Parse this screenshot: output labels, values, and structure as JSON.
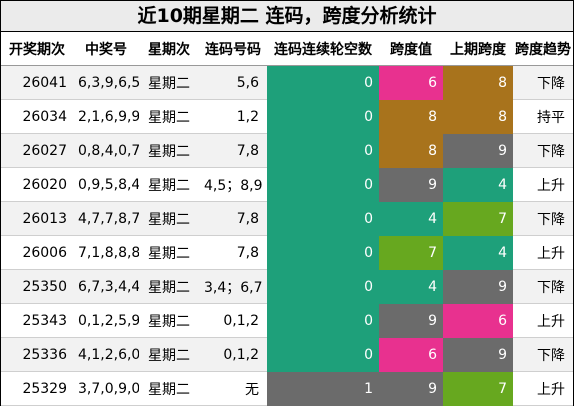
{
  "title": "近10期星期二 连码，跨度分析统计",
  "headers": [
    "开奖期次",
    "中奖号",
    "星期次",
    "连码号码",
    "连码连续轮空数",
    "跨度值",
    "上期跨度",
    "跨度趋势"
  ],
  "colors": {
    "teal": "#1ea07a",
    "pink": "#e8318f",
    "brown": "#a8731c",
    "gray": "#6b6b6b",
    "green": "#67a81f"
  },
  "rows": [
    {
      "issue": "26041",
      "numbers": "6,3,9,6,5",
      "weekday": "星期二",
      "consec": "5,6",
      "gap": "0",
      "gap_color": "#1ea07a",
      "span": "6",
      "span_color": "#e8318f",
      "prev_span": "8",
      "prev_color": "#a8731c",
      "trend": "下降"
    },
    {
      "issue": "26034",
      "numbers": "2,1,6,9,9",
      "weekday": "星期二",
      "consec": "1,2",
      "gap": "0",
      "gap_color": "#1ea07a",
      "span": "8",
      "span_color": "#a8731c",
      "prev_span": "8",
      "prev_color": "#a8731c",
      "trend": "持平"
    },
    {
      "issue": "26027",
      "numbers": "0,8,4,0,7",
      "weekday": "星期二",
      "consec": "7,8",
      "gap": "0",
      "gap_color": "#1ea07a",
      "span": "8",
      "span_color": "#a8731c",
      "prev_span": "9",
      "prev_color": "#6b6b6b",
      "trend": "下降"
    },
    {
      "issue": "26020",
      "numbers": "0,9,5,8,4",
      "weekday": "星期二",
      "consec": "4,5；8,9",
      "gap": "0",
      "gap_color": "#1ea07a",
      "span": "9",
      "span_color": "#6b6b6b",
      "prev_span": "4",
      "prev_color": "#1ea07a",
      "trend": "上升"
    },
    {
      "issue": "26013",
      "numbers": "4,7,7,8,7",
      "weekday": "星期二",
      "consec": "7,8",
      "gap": "0",
      "gap_color": "#1ea07a",
      "span": "4",
      "span_color": "#1ea07a",
      "prev_span": "7",
      "prev_color": "#67a81f",
      "trend": "下降"
    },
    {
      "issue": "26006",
      "numbers": "7,1,8,8,8",
      "weekday": "星期二",
      "consec": "7,8",
      "gap": "0",
      "gap_color": "#1ea07a",
      "span": "7",
      "span_color": "#67a81f",
      "prev_span": "4",
      "prev_color": "#1ea07a",
      "trend": "上升"
    },
    {
      "issue": "25350",
      "numbers": "6,7,3,4,4",
      "weekday": "星期二",
      "consec": "3,4；6,7",
      "gap": "0",
      "gap_color": "#1ea07a",
      "span": "4",
      "span_color": "#1ea07a",
      "prev_span": "9",
      "prev_color": "#6b6b6b",
      "trend": "下降"
    },
    {
      "issue": "25343",
      "numbers": "0,1,2,5,9",
      "weekday": "星期二",
      "consec": "0,1,2",
      "gap": "0",
      "gap_color": "#1ea07a",
      "span": "9",
      "span_color": "#6b6b6b",
      "prev_span": "6",
      "prev_color": "#e8318f",
      "trend": "上升"
    },
    {
      "issue": "25336",
      "numbers": "4,1,2,6,0",
      "weekday": "星期二",
      "consec": "0,1,2",
      "gap": "0",
      "gap_color": "#1ea07a",
      "span": "6",
      "span_color": "#e8318f",
      "prev_span": "9",
      "prev_color": "#6b6b6b",
      "trend": "下降"
    },
    {
      "issue": "25329",
      "numbers": "3,7,0,9,0",
      "weekday": "星期二",
      "consec": "无",
      "gap": "1",
      "gap_color": "#6b6b6b",
      "span": "9",
      "span_color": "#6b6b6b",
      "prev_span": "7",
      "prev_color": "#67a81f",
      "trend": "上升"
    }
  ]
}
